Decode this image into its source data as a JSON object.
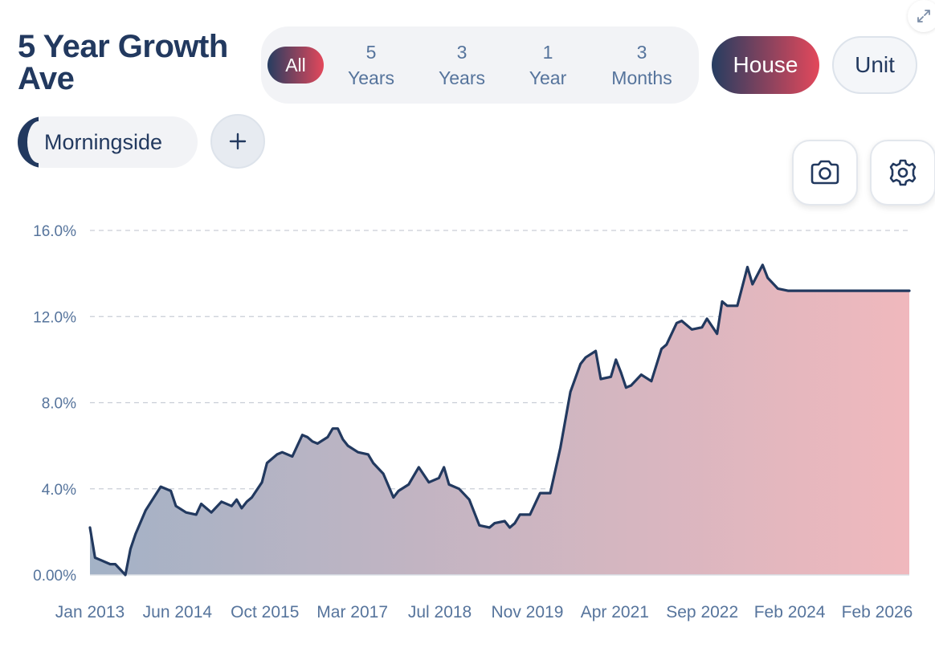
{
  "header": {
    "title": "5 Year Growth Ave"
  },
  "period_selector": {
    "selected": "All",
    "options": [
      {
        "line1": "All",
        "line2": ""
      },
      {
        "line1": "5",
        "line2": "Years"
      },
      {
        "line1": "3",
        "line2": "Years"
      },
      {
        "line1": "1",
        "line2": "Year"
      },
      {
        "line1": "3",
        "line2": "Months"
      }
    ]
  },
  "property_type": {
    "selected": "House",
    "options": [
      "House",
      "Unit"
    ]
  },
  "suburbs": {
    "items": [
      "Morningside"
    ]
  },
  "icons": {
    "expand": "expand-icon",
    "add": "plus-icon",
    "camera": "camera-icon",
    "settings": "gear-icon"
  },
  "colors": {
    "accent_dark": "#263d61",
    "accent_red": "#e3485b",
    "line": "#22395f",
    "area_start": "#a3b2c6",
    "area_end": "#f0b8bd",
    "axis_text": "#56749c"
  },
  "chart_data": {
    "type": "area",
    "title": "",
    "xlabel": "",
    "ylabel": "",
    "x_ticks": [
      "Jan 2013",
      "Jun 2014",
      "Oct 2015",
      "Mar 2017",
      "Jul 2018",
      "Nov 2019",
      "Apr 2021",
      "Sep 2022",
      "Feb 2024",
      "Feb 2026"
    ],
    "y_ticks": [
      "0.00%",
      "4.0%",
      "8.0%",
      "12.0%",
      "16.0%"
    ],
    "ylim": [
      0,
      16
    ],
    "xlim": [
      "2013-01",
      "2026-07"
    ],
    "grid": true,
    "series": [
      {
        "name": "Morningside",
        "x": [
          "2013-01",
          "2013-02",
          "2013-03",
          "2013-05",
          "2013-06",
          "2013-08",
          "2013-09",
          "2013-10",
          "2013-12",
          "2014-03",
          "2014-05",
          "2014-06",
          "2014-08",
          "2014-10",
          "2014-11",
          "2015-01",
          "2015-03",
          "2015-05",
          "2015-06",
          "2015-07",
          "2015-08",
          "2015-09",
          "2015-11",
          "2015-12",
          "2016-02",
          "2016-03",
          "2016-05",
          "2016-07",
          "2016-08",
          "2016-09",
          "2016-10",
          "2016-12",
          "2017-01",
          "2017-02",
          "2017-03",
          "2017-04",
          "2017-06",
          "2017-08",
          "2017-09",
          "2017-11",
          "2018-01",
          "2018-02",
          "2018-04",
          "2018-06",
          "2018-08",
          "2018-10",
          "2018-11",
          "2018-12",
          "2019-02",
          "2019-04",
          "2019-06",
          "2019-08",
          "2019-09",
          "2019-11",
          "2019-12",
          "2020-01",
          "2020-02",
          "2020-04",
          "2020-06",
          "2020-08",
          "2020-10",
          "2020-12",
          "2021-02",
          "2021-03",
          "2021-05",
          "2021-06",
          "2021-08",
          "2021-09",
          "2021-10",
          "2021-11",
          "2021-12",
          "2022-02",
          "2022-04",
          "2022-06",
          "2022-07",
          "2022-09",
          "2022-10",
          "2022-12",
          "2023-02",
          "2023-03",
          "2023-05",
          "2023-06",
          "2023-07",
          "2023-09",
          "2023-11",
          "2023-12",
          "2024-02",
          "2024-03",
          "2024-05",
          "2024-07",
          "2024-08",
          "2024-10",
          "2024-12",
          "2025-01",
          "2025-03",
          "2025-05",
          "2025-07",
          "2025-08",
          "2025-10",
          "2025-11",
          "2026-01",
          "2026-03",
          "2026-04",
          "2026-05",
          "2026-06",
          "2026-07"
        ],
        "y": [
          2.2,
          0.8,
          0.7,
          0.5,
          0.5,
          0.0,
          1.2,
          1.9,
          3.0,
          4.1,
          3.9,
          3.2,
          2.9,
          2.8,
          3.3,
          2.9,
          3.4,
          3.2,
          3.5,
          3.1,
          3.4,
          3.6,
          4.3,
          5.2,
          5.6,
          5.7,
          5.5,
          6.5,
          6.4,
          6.2,
          6.1,
          6.4,
          6.8,
          6.8,
          6.3,
          6.0,
          5.7,
          5.6,
          5.2,
          4.7,
          3.6,
          3.9,
          4.2,
          5.0,
          4.3,
          4.5,
          5.0,
          4.2,
          4.0,
          3.5,
          2.3,
          2.2,
          2.4,
          2.5,
          2.2,
          2.4,
          2.8,
          2.8,
          3.8,
          3.8,
          5.9,
          8.5,
          9.8,
          10.1,
          10.4,
          9.1,
          9.2,
          10.0,
          9.4,
          8.7,
          8.8,
          9.3,
          9.0,
          10.5,
          10.7,
          11.7,
          11.8,
          11.4,
          11.5,
          11.9,
          11.2,
          12.7,
          12.5,
          12.5,
          14.3,
          13.5,
          14.4,
          13.8,
          13.3,
          13.2,
          13.2,
          13.2,
          13.2,
          13.2,
          13.2,
          13.2,
          13.2,
          13.2,
          13.2,
          13.2,
          13.2,
          13.2,
          13.2,
          13.2,
          13.2,
          13.2
        ]
      }
    ]
  }
}
